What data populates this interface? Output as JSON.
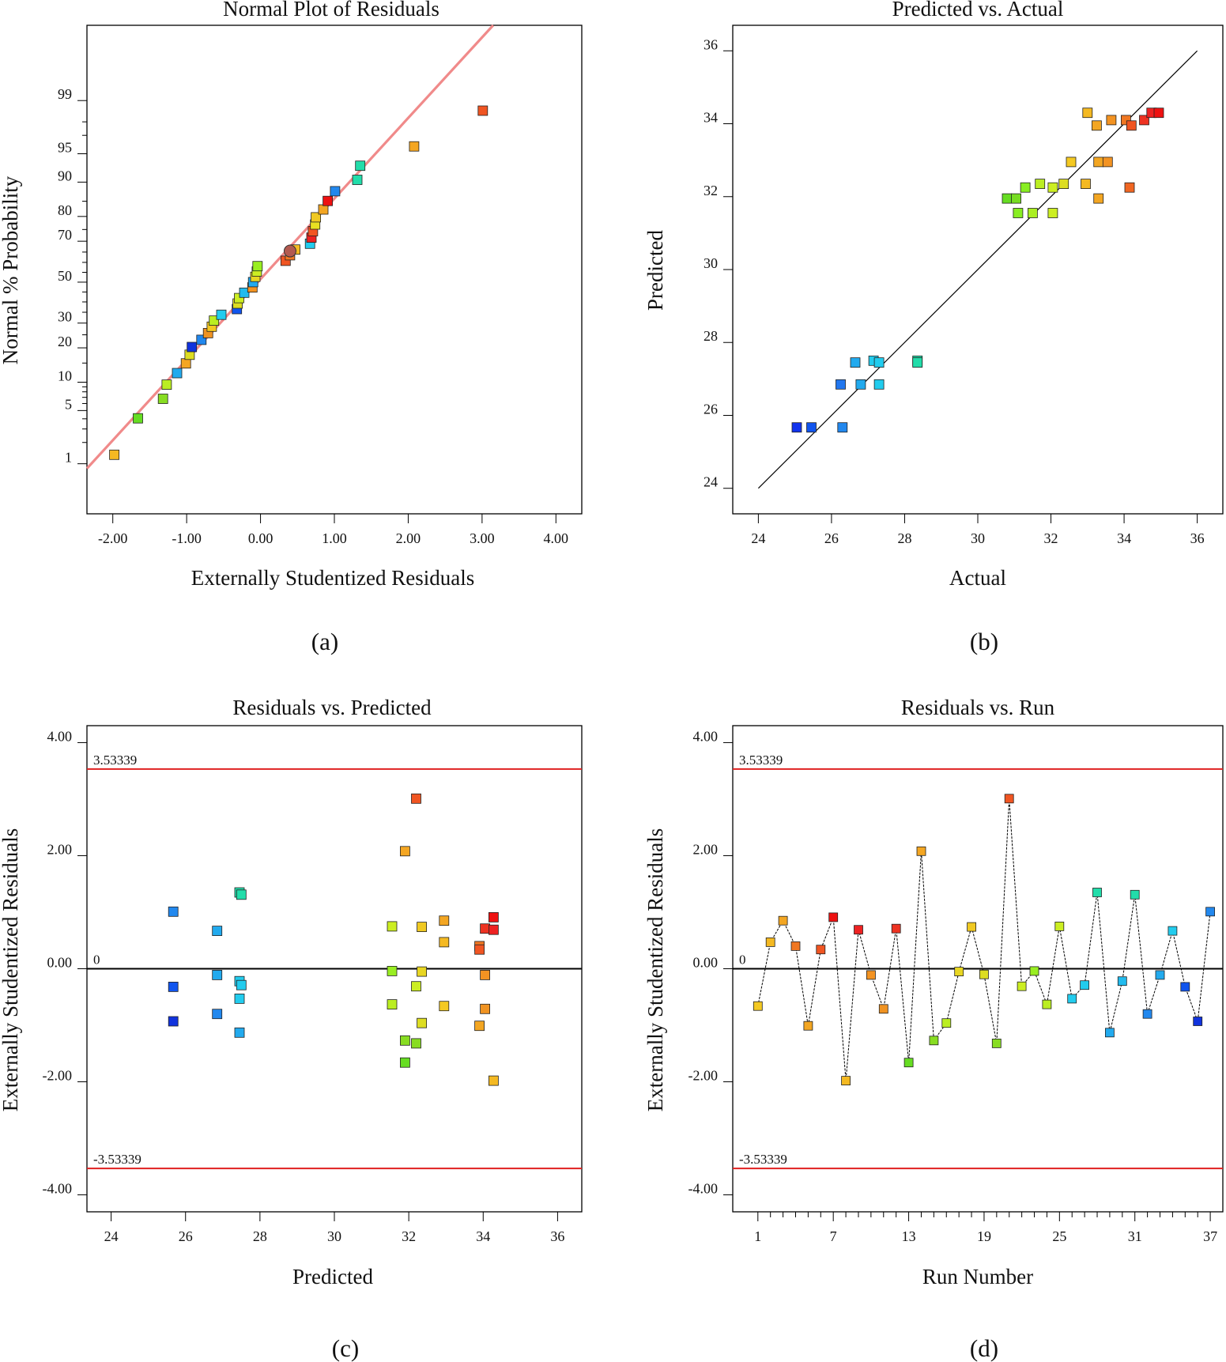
{
  "colors": {
    "fit_line_a": "#f08a8a",
    "limit_line": "#e02020",
    "frame": "#000000"
  },
  "chart_data": [
    {
      "id": "a",
      "type": "scatter",
      "panel_label": "(a)",
      "title": "Normal Plot of Residuals",
      "xlabel": "Externally Studentized Residuals",
      "ylabel": "Normal % Probability",
      "xlim": [
        -2.35,
        4.35
      ],
      "xticks": [
        -2,
        -1,
        0,
        1,
        2,
        3,
        4
      ],
      "xtick_labels": [
        "-2.00",
        "-1.00",
        "0.00",
        "1.00",
        "2.00",
        "3.00",
        "4.00"
      ],
      "y_scale": "normal-probability",
      "ylim_percent": [
        0.15,
        99.95
      ],
      "ytick_labels": [
        "1",
        "5",
        "10",
        "20",
        "30",
        "50",
        "70",
        "80",
        "90",
        "95",
        "99"
      ],
      "fit_line": {
        "x": [
          -2.35,
          3.15
        ],
        "y_percent": [
          0.85,
          99.95
        ]
      },
      "points": [
        {
          "x": -1.98,
          "p": 1.35,
          "c": "#f4b922"
        },
        {
          "x": -1.66,
          "p": 4.05,
          "c": "#66dd22"
        },
        {
          "x": -1.32,
          "p": 6.76,
          "c": "#88dd22"
        },
        {
          "x": -1.27,
          "p": 9.46,
          "c": "#bbee22"
        },
        {
          "x": -1.13,
          "p": 12.2,
          "c": "#22aaee"
        },
        {
          "x": -1.01,
          "p": 14.9,
          "c": "#f4a622"
        },
        {
          "x": -0.96,
          "p": 17.6,
          "c": "#dddd22"
        },
        {
          "x": -0.93,
          "p": 20.3,
          "c": "#1133dd"
        },
        {
          "x": -0.8,
          "p": 23.0,
          "c": "#2288ee"
        },
        {
          "x": -0.71,
          "p": 25.7,
          "c": "#f09322"
        },
        {
          "x": -0.66,
          "p": 28.4,
          "c": "#f4c922"
        },
        {
          "x": -0.63,
          "p": 31.1,
          "c": "#bbee22"
        },
        {
          "x": -0.53,
          "p": 33.8,
          "c": "#22ccee"
        },
        {
          "x": -0.32,
          "p": 36.5,
          "c": "#1155ee"
        },
        {
          "x": -0.31,
          "p": 39.2,
          "c": "#dddd22"
        },
        {
          "x": -0.29,
          "p": 41.9,
          "c": "#ccee22"
        },
        {
          "x": -0.22,
          "p": 44.6,
          "c": "#22bbee"
        },
        {
          "x": -0.11,
          "p": 47.3,
          "c": "#f39322"
        },
        {
          "x": -0.1,
          "p": 50.0,
          "c": "#22aaee"
        },
        {
          "x": -0.07,
          "p": 52.7,
          "c": "#e8d622"
        },
        {
          "x": -0.05,
          "p": 55.4,
          "c": "#ccee22"
        },
        {
          "x": -0.04,
          "p": 58.1,
          "c": "#99ee22"
        },
        {
          "x": 0.34,
          "p": 60.8,
          "c": "#f05522"
        },
        {
          "x": 0.4,
          "p": 63.5,
          "c": "#f07722"
        },
        {
          "x": 0.47,
          "p": 66.2,
          "c": "#f4b922"
        },
        {
          "x": 0.67,
          "p": 68.9,
          "c": "#22ccee"
        },
        {
          "x": 0.69,
          "p": 71.6,
          "c": "#ee2222"
        },
        {
          "x": 0.71,
          "p": 74.3,
          "c": "#f25522"
        },
        {
          "x": 0.74,
          "p": 77.0,
          "c": "#e8e022"
        },
        {
          "x": 0.75,
          "p": 79.7,
          "c": "#f0c922"
        },
        {
          "x": 0.85,
          "p": 82.4,
          "c": "#f3a622"
        },
        {
          "x": 0.91,
          "p": 85.1,
          "c": "#ee1111"
        },
        {
          "x": 1.01,
          "p": 87.8,
          "c": "#2288ee"
        },
        {
          "x": 1.31,
          "p": 90.5,
          "c": "#22ddaa"
        },
        {
          "x": 1.35,
          "p": 93.2,
          "c": "#22ddaa"
        },
        {
          "x": 2.08,
          "p": 95.9,
          "c": "#f4a622"
        },
        {
          "x": 3.01,
          "p": 98.6,
          "c": "#f05522"
        }
      ],
      "highlight_point": {
        "x": 0.4,
        "p": 65.5,
        "c": "#b35a50"
      }
    },
    {
      "id": "b",
      "type": "scatter",
      "panel_label": "(b)",
      "title": "Predicted vs. Actual",
      "xlabel": "Actual",
      "ylabel": "Predicted",
      "xlim": [
        23.3,
        36.7
      ],
      "ylim": [
        23.3,
        36.7
      ],
      "xticks": [
        24,
        26,
        28,
        30,
        32,
        34,
        36
      ],
      "yticks": [
        24,
        26,
        28,
        30,
        32,
        34,
        36
      ],
      "xtick_labels": [
        "24",
        "26",
        "28",
        "30",
        "32",
        "34",
        "36"
      ],
      "ytick_labels": [
        "24",
        "26",
        "28",
        "30",
        "32",
        "34",
        "36"
      ],
      "fit_line": {
        "x": [
          24,
          36
        ],
        "y": [
          24,
          36
        ]
      },
      "points": [
        {
          "x": 25.05,
          "y": 25.67,
          "c": "#1133ee"
        },
        {
          "x": 25.45,
          "y": 25.67,
          "c": "#1155ee"
        },
        {
          "x": 26.3,
          "y": 25.67,
          "c": "#2288ee"
        },
        {
          "x": 26.25,
          "y": 26.85,
          "c": "#2277ee"
        },
        {
          "x": 26.8,
          "y": 26.85,
          "c": "#22aaee"
        },
        {
          "x": 27.3,
          "y": 26.85,
          "c": "#22ccee"
        },
        {
          "x": 26.65,
          "y": 27.45,
          "c": "#22aaee"
        },
        {
          "x": 27.15,
          "y": 27.5,
          "c": "#22ccee"
        },
        {
          "x": 27.3,
          "y": 27.45,
          "c": "#22ccee"
        },
        {
          "x": 28.35,
          "y": 27.5,
          "c": "#22ddaa"
        },
        {
          "x": 28.35,
          "y": 27.45,
          "c": "#22ddaa"
        },
        {
          "x": 30.8,
          "y": 31.95,
          "c": "#66dd22"
        },
        {
          "x": 31.05,
          "y": 31.95,
          "c": "#77dd22"
        },
        {
          "x": 31.1,
          "y": 31.55,
          "c": "#88ee22"
        },
        {
          "x": 31.3,
          "y": 32.25,
          "c": "#88ee22"
        },
        {
          "x": 31.5,
          "y": 31.55,
          "c": "#aaee22"
        },
        {
          "x": 31.7,
          "y": 32.35,
          "c": "#bbee22"
        },
        {
          "x": 32.05,
          "y": 31.55,
          "c": "#ccee22"
        },
        {
          "x": 32.05,
          "y": 32.25,
          "c": "#ccee22"
        },
        {
          "x": 32.35,
          "y": 32.35,
          "c": "#dddd22"
        },
        {
          "x": 32.55,
          "y": 32.95,
          "c": "#f4c922"
        },
        {
          "x": 32.95,
          "y": 32.35,
          "c": "#f4b922"
        },
        {
          "x": 33.0,
          "y": 34.3,
          "c": "#f4b922"
        },
        {
          "x": 33.25,
          "y": 33.95,
          "c": "#f3a622"
        },
        {
          "x": 33.3,
          "y": 32.95,
          "c": "#f3a622"
        },
        {
          "x": 33.3,
          "y": 31.95,
          "c": "#f3a622"
        },
        {
          "x": 33.55,
          "y": 32.95,
          "c": "#f39322"
        },
        {
          "x": 33.65,
          "y": 34.1,
          "c": "#f39322"
        },
        {
          "x": 34.05,
          "y": 34.1,
          "c": "#f07722"
        },
        {
          "x": 34.15,
          "y": 32.25,
          "c": "#f06622"
        },
        {
          "x": 34.2,
          "y": 33.95,
          "c": "#f05522"
        },
        {
          "x": 34.55,
          "y": 34.1,
          "c": "#ee3322"
        },
        {
          "x": 34.75,
          "y": 34.3,
          "c": "#ee2222"
        },
        {
          "x": 34.95,
          "y": 34.3,
          "c": "#ee1111"
        }
      ]
    },
    {
      "id": "c",
      "type": "scatter",
      "panel_label": "(c)",
      "title": "Residuals vs. Predicted",
      "xlabel": "Predicted",
      "ylabel": "Externally Studentized Residuals",
      "xlim": [
        23.35,
        36.65
      ],
      "ylim": [
        -4.3,
        4.3
      ],
      "xticks": [
        24,
        26,
        28,
        30,
        32,
        34,
        36
      ],
      "xtick_labels": [
        "24",
        "26",
        "28",
        "30",
        "32",
        "34",
        "36"
      ],
      "yticks": [
        -4,
        -2,
        0,
        2,
        4
      ],
      "ytick_labels": [
        "-4.00",
        "-2.00",
        "0.00",
        "2.00",
        "4.00"
      ],
      "ref_lines": [
        {
          "y": 3.53339,
          "label": "3.53339",
          "c": "#e02020"
        },
        {
          "y": 0,
          "label": "0",
          "c": "#000000"
        },
        {
          "y": -3.53339,
          "label": "-3.53339",
          "c": "#e02020"
        }
      ],
      "points": [
        {
          "x": 25.67,
          "y": 1.01,
          "c": "#2288ee"
        },
        {
          "x": 25.67,
          "y": -0.32,
          "c": "#1155ee"
        },
        {
          "x": 25.67,
          "y": -0.93,
          "c": "#1133dd"
        },
        {
          "x": 26.85,
          "y": 0.67,
          "c": "#22aaee"
        },
        {
          "x": 26.85,
          "y": -0.11,
          "c": "#22aaee"
        },
        {
          "x": 26.85,
          "y": -0.8,
          "c": "#2288ee"
        },
        {
          "x": 27.45,
          "y": 1.35,
          "c": "#22ddaa"
        },
        {
          "x": 27.5,
          "y": 1.31,
          "c": "#22ddaa"
        },
        {
          "x": 27.45,
          "y": -0.22,
          "c": "#22ccee"
        },
        {
          "x": 27.5,
          "y": -0.29,
          "c": "#22ccee"
        },
        {
          "x": 27.45,
          "y": -0.53,
          "c": "#22ccee"
        },
        {
          "x": 27.45,
          "y": -1.13,
          "c": "#22aaee"
        },
        {
          "x": 31.55,
          "y": 0.75,
          "c": "#ccee22"
        },
        {
          "x": 31.55,
          "y": -0.04,
          "c": "#99ee22"
        },
        {
          "x": 31.55,
          "y": -0.63,
          "c": "#bbee22"
        },
        {
          "x": 31.9,
          "y": 2.08,
          "c": "#f4a622"
        },
        {
          "x": 31.9,
          "y": -1.27,
          "c": "#88dd22"
        },
        {
          "x": 31.9,
          "y": -1.66,
          "c": "#66dd22"
        },
        {
          "x": 32.2,
          "y": 3.01,
          "c": "#f05522"
        },
        {
          "x": 32.2,
          "y": -0.31,
          "c": "#ccee22"
        },
        {
          "x": 32.2,
          "y": -1.32,
          "c": "#88dd22"
        },
        {
          "x": 32.35,
          "y": 0.74,
          "c": "#f0c922"
        },
        {
          "x": 32.35,
          "y": -0.05,
          "c": "#e8d622"
        },
        {
          "x": 32.35,
          "y": -0.96,
          "c": "#dddd22"
        },
        {
          "x": 32.95,
          "y": 0.85,
          "c": "#f3a622"
        },
        {
          "x": 32.95,
          "y": 0.47,
          "c": "#f4b922"
        },
        {
          "x": 32.95,
          "y": -0.66,
          "c": "#f4c922"
        },
        {
          "x": 33.9,
          "y": 0.4,
          "c": "#f07722"
        },
        {
          "x": 33.9,
          "y": 0.34,
          "c": "#f05522"
        },
        {
          "x": 33.9,
          "y": -1.01,
          "c": "#f3a622"
        },
        {
          "x": 34.05,
          "y": 0.71,
          "c": "#ee3322"
        },
        {
          "x": 34.05,
          "y": -0.11,
          "c": "#f39322"
        },
        {
          "x": 34.05,
          "y": -0.71,
          "c": "#f09322"
        },
        {
          "x": 34.28,
          "y": 0.91,
          "c": "#ee1111"
        },
        {
          "x": 34.28,
          "y": 0.69,
          "c": "#ee2222"
        },
        {
          "x": 34.28,
          "y": -1.98,
          "c": "#f4b922"
        }
      ]
    },
    {
      "id": "d",
      "type": "line",
      "panel_label": "(d)",
      "title": "Residuals vs. Run",
      "xlabel": "Run Number",
      "ylabel": "Externally Studentized Residuals",
      "xlim": [
        -1,
        38
      ],
      "ylim": [
        -4.3,
        4.3
      ],
      "xticks": [
        1,
        7,
        13,
        19,
        25,
        31,
        37
      ],
      "xtick_labels": [
        "1",
        "7",
        "13",
        "19",
        "25",
        "31",
        "37"
      ],
      "yticks": [
        -4,
        -2,
        0,
        2,
        4
      ],
      "ytick_labels": [
        "-4.00",
        "-2.00",
        "0.00",
        "2.00",
        "4.00"
      ],
      "ref_lines": [
        {
          "y": 3.53339,
          "label": "3.53339",
          "c": "#e02020"
        },
        {
          "y": 0,
          "label": "0",
          "c": "#000000"
        },
        {
          "y": -3.53339,
          "label": "-3.53339",
          "c": "#e02020"
        }
      ],
      "runs": [
        {
          "x": 1,
          "y": -0.66,
          "c": "#f4c922"
        },
        {
          "x": 2,
          "y": 0.47,
          "c": "#f4b922"
        },
        {
          "x": 3,
          "y": 0.85,
          "c": "#f3a622"
        },
        {
          "x": 4,
          "y": 0.4,
          "c": "#f07722"
        },
        {
          "x": 5,
          "y": -1.01,
          "c": "#f3a622"
        },
        {
          "x": 6,
          "y": 0.34,
          "c": "#f05522"
        },
        {
          "x": 7,
          "y": 0.91,
          "c": "#ee1111"
        },
        {
          "x": 8,
          "y": -1.98,
          "c": "#f4b922"
        },
        {
          "x": 9,
          "y": 0.69,
          "c": "#ee2222"
        },
        {
          "x": 10,
          "y": -0.11,
          "c": "#f39322"
        },
        {
          "x": 11,
          "y": -0.71,
          "c": "#f09322"
        },
        {
          "x": 12,
          "y": 0.71,
          "c": "#ee3322"
        },
        {
          "x": 13,
          "y": -1.66,
          "c": "#66dd22"
        },
        {
          "x": 14,
          "y": 2.08,
          "c": "#f4a622"
        },
        {
          "x": 15,
          "y": -1.27,
          "c": "#88dd22"
        },
        {
          "x": 16,
          "y": -0.96,
          "c": "#bbee22"
        },
        {
          "x": 17,
          "y": -0.05,
          "c": "#e8d622"
        },
        {
          "x": 18,
          "y": 0.74,
          "c": "#f0c922"
        },
        {
          "x": 19,
          "y": -0.1,
          "c": "#dddd22"
        },
        {
          "x": 20,
          "y": -1.32,
          "c": "#88dd22"
        },
        {
          "x": 21,
          "y": 3.01,
          "c": "#f05522"
        },
        {
          "x": 22,
          "y": -0.31,
          "c": "#ccee22"
        },
        {
          "x": 23,
          "y": -0.04,
          "c": "#99ee22"
        },
        {
          "x": 24,
          "y": -0.63,
          "c": "#bbee22"
        },
        {
          "x": 25,
          "y": 0.75,
          "c": "#ccee22"
        },
        {
          "x": 26,
          "y": -0.53,
          "c": "#22ccee"
        },
        {
          "x": 27,
          "y": -0.29,
          "c": "#22ccee"
        },
        {
          "x": 28,
          "y": 1.35,
          "c": "#22ddaa"
        },
        {
          "x": 29,
          "y": -1.13,
          "c": "#22aaee"
        },
        {
          "x": 30,
          "y": -0.22,
          "c": "#22bbee"
        },
        {
          "x": 31,
          "y": 1.31,
          "c": "#22ddaa"
        },
        {
          "x": 32,
          "y": -0.8,
          "c": "#2288ee"
        },
        {
          "x": 33,
          "y": -0.11,
          "c": "#22aaee"
        },
        {
          "x": 34,
          "y": 0.67,
          "c": "#22ccee"
        },
        {
          "x": 35,
          "y": -0.32,
          "c": "#1155ee"
        },
        {
          "x": 36,
          "y": -0.93,
          "c": "#1133dd"
        },
        {
          "x": 37,
          "y": 1.01,
          "c": "#2288ee"
        }
      ]
    }
  ]
}
